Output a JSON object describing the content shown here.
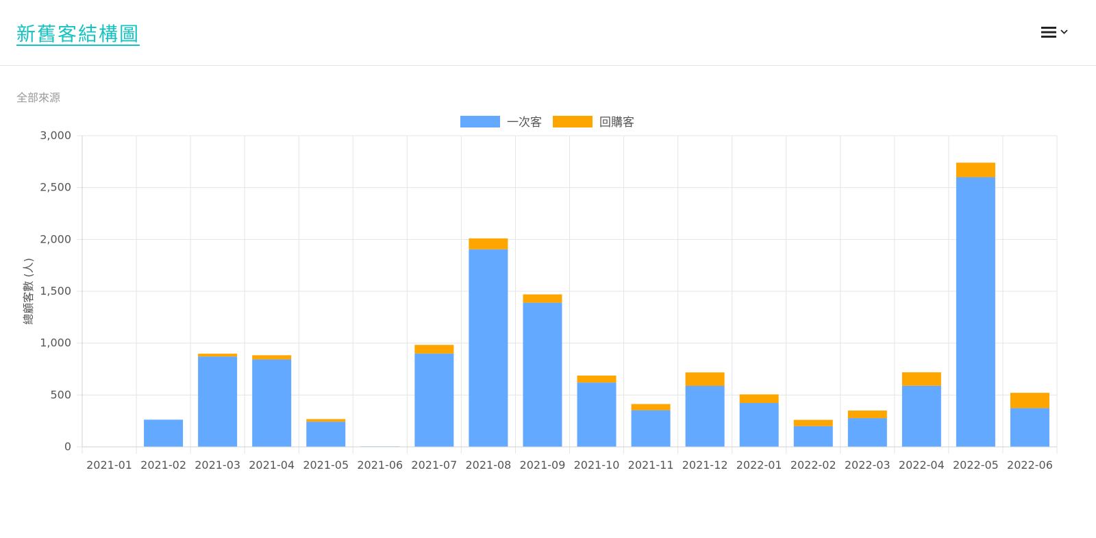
{
  "header": {
    "title": "新舊客結構圖",
    "menu_icon": "hamburger-menu-icon"
  },
  "subtitle": "全部來源",
  "colors": {
    "title": "#17c2c2",
    "first_time": "#63a9ff",
    "returning": "#ffa500",
    "grid": "#e5e5e5"
  },
  "chart_data": {
    "type": "bar",
    "stacked": true,
    "title": "",
    "xlabel": "",
    "ylabel": "總顧客數 (人)",
    "ylim": [
      0,
      3000
    ],
    "yticks": [
      0,
      500,
      1000,
      1500,
      2000,
      2500,
      3000
    ],
    "ytick_labels": [
      "0",
      "500",
      "1,000",
      "1,500",
      "2,000",
      "2,500",
      "3,000"
    ],
    "grid": true,
    "legend_position": "top-center",
    "categories": [
      "2021-01",
      "2021-02",
      "2021-03",
      "2021-04",
      "2021-05",
      "2021-06",
      "2021-07",
      "2021-08",
      "2021-09",
      "2021-10",
      "2021-11",
      "2021-12",
      "2022-01",
      "2022-02",
      "2022-03",
      "2022-04",
      "2022-05",
      "2022-06"
    ],
    "series": [
      {
        "name": "一次客",
        "color": "#63a9ff",
        "values": [
          0,
          262,
          871,
          843,
          243,
          5,
          900,
          1905,
          1390,
          620,
          353,
          588,
          423,
          200,
          277,
          589,
          2600,
          374
        ]
      },
      {
        "name": "回購客",
        "color": "#ffa500",
        "values": [
          0,
          0,
          27,
          40,
          25,
          0,
          83,
          105,
          80,
          67,
          60,
          130,
          83,
          60,
          73,
          130,
          140,
          147
        ]
      }
    ]
  }
}
